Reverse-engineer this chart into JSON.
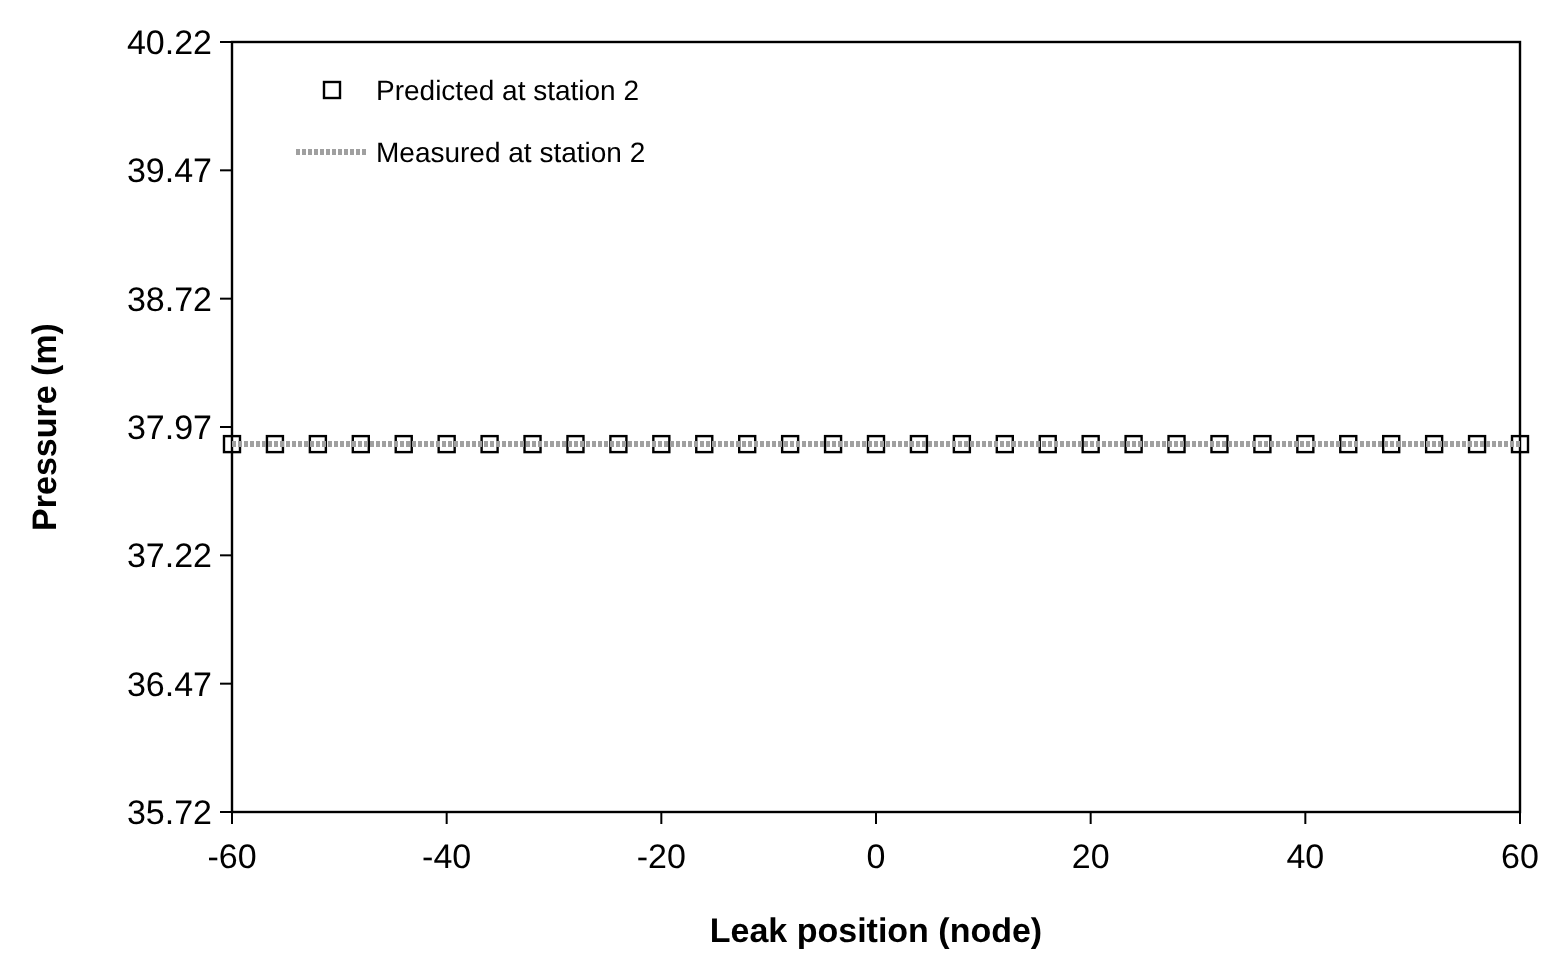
{
  "chart_data": {
    "type": "scatter",
    "xlabel": "Leak position (node)",
    "ylabel": "Pressure (m)",
    "xlim": [
      -60,
      60
    ],
    "xticks": [
      -60,
      -40,
      -20,
      0,
      20,
      40,
      60
    ],
    "ylim": [
      35.72,
      40.22
    ],
    "yticks": [
      35.72,
      36.47,
      37.22,
      37.97,
      38.72,
      39.47,
      40.22
    ],
    "grid": false,
    "legend": "top left",
    "series": [
      {
        "name": "Predicted at station 2",
        "marker": "square",
        "color": "#000000",
        "x": [
          -60,
          -56,
          -52,
          -48,
          -44,
          -40,
          -36,
          -32,
          -28,
          -24,
          -20,
          -16,
          -12,
          -8,
          -4,
          0,
          4,
          8,
          12,
          16,
          20,
          24,
          28,
          32,
          36,
          40,
          44,
          48,
          52,
          56,
          60
        ],
        "values": [
          37.87,
          37.87,
          37.87,
          37.87,
          37.87,
          37.87,
          37.87,
          37.87,
          37.87,
          37.87,
          37.87,
          37.87,
          37.87,
          37.87,
          37.87,
          37.87,
          37.87,
          37.87,
          37.87,
          37.87,
          37.87,
          37.87,
          37.87,
          37.87,
          37.87,
          37.87,
          37.87,
          37.87,
          37.87,
          37.87,
          37.87
        ]
      },
      {
        "name": "Measured at station 2",
        "type": "line",
        "line_style": "dotted",
        "color": "#a0a0a0",
        "x": [
          -60,
          60
        ],
        "values": [
          37.87,
          37.87
        ]
      }
    ]
  }
}
